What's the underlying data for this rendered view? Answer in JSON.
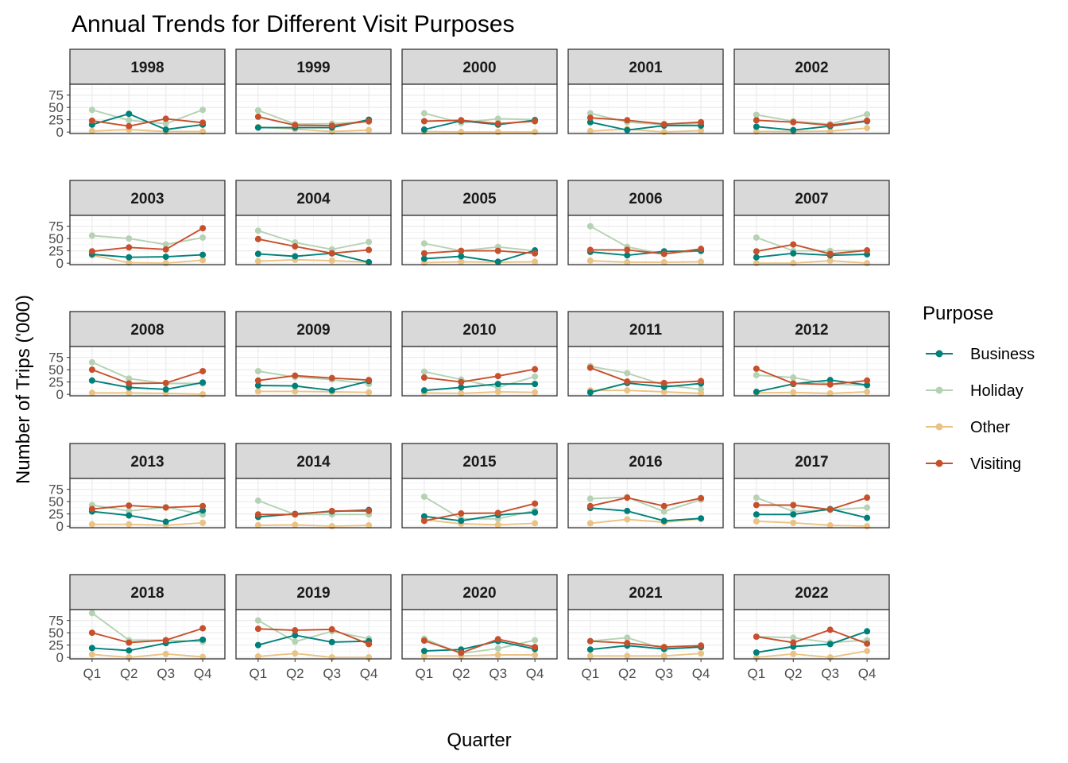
{
  "chart_data": {
    "type": "line",
    "title": "Annual Trends for Different Visit Purposes",
    "xlabel": "Quarter",
    "ylabel": "Number of Trips ('000)",
    "categories": [
      "Q1",
      "Q2",
      "Q3",
      "Q4"
    ],
    "ylim": [
      -3,
      97
    ],
    "yticks": [
      0,
      25,
      50,
      75
    ],
    "grid": true,
    "facet": "year",
    "facet_columns": 5,
    "legend": {
      "title": "Purpose",
      "placement": "right",
      "entries": [
        {
          "name": "Business",
          "color": "#00807a"
        },
        {
          "name": "Holiday",
          "color": "#b5d2b4"
        },
        {
          "name": "Other",
          "color": "#eac384"
        },
        {
          "name": "Visiting",
          "color": "#c6502c"
        }
      ]
    },
    "panels": [
      {
        "year": "1998",
        "series": {
          "Business": [
            15,
            37,
            5,
            15
          ],
          "Holiday": [
            45,
            24,
            17,
            45
          ],
          "Other": [
            2,
            5,
            1,
            1
          ],
          "Visiting": [
            23,
            12,
            27,
            19
          ]
        }
      },
      {
        "year": "1999",
        "series": {
          "Business": [
            9,
            9,
            9,
            25
          ],
          "Holiday": [
            44,
            16,
            17,
            21
          ],
          "Other": [
            10,
            6,
            1,
            4
          ],
          "Visiting": [
            31,
            14,
            13,
            22
          ]
        }
      },
      {
        "year": "2000",
        "series": {
          "Business": [
            5,
            23,
            15,
            24
          ],
          "Holiday": [
            38,
            19,
            27,
            25
          ],
          "Other": [
            1,
            0,
            0,
            0
          ],
          "Visiting": [
            22,
            24,
            17,
            22
          ]
        }
      },
      {
        "year": "2001",
        "series": {
          "Business": [
            20,
            4,
            13,
            13
          ],
          "Holiday": [
            38,
            20,
            15,
            17
          ],
          "Other": [
            2,
            6,
            0,
            3
          ],
          "Visiting": [
            29,
            24,
            16,
            20
          ]
        }
      },
      {
        "year": "2002",
        "series": {
          "Business": [
            11,
            4,
            12,
            22
          ],
          "Holiday": [
            35,
            22,
            16,
            36
          ],
          "Other": [
            1,
            1,
            2,
            8
          ],
          "Visiting": [
            24,
            20,
            14,
            23
          ]
        }
      },
      {
        "year": "2003",
        "series": {
          "Business": [
            18,
            12,
            13,
            17
          ],
          "Holiday": [
            56,
            50,
            38,
            52
          ],
          "Other": [
            16,
            1,
            0,
            6
          ],
          "Visiting": [
            24,
            32,
            28,
            71
          ]
        }
      },
      {
        "year": "2004",
        "series": {
          "Business": [
            19,
            14,
            20,
            2
          ],
          "Holiday": [
            66,
            42,
            28,
            43
          ],
          "Other": [
            4,
            7,
            5,
            2
          ],
          "Visiting": [
            49,
            34,
            20,
            27
          ]
        }
      },
      {
        "year": "2005",
        "series": {
          "Business": [
            9,
            14,
            3,
            26
          ],
          "Holiday": [
            40,
            25,
            33,
            25
          ],
          "Other": [
            1,
            3,
            2,
            3
          ],
          "Visiting": [
            20,
            25,
            25,
            20
          ]
        }
      },
      {
        "year": "2006",
        "series": {
          "Business": [
            23,
            16,
            24,
            25
          ],
          "Holiday": [
            75,
            33,
            19,
            25
          ],
          "Other": [
            5,
            2,
            2,
            3
          ],
          "Visiting": [
            27,
            27,
            19,
            29
          ]
        }
      },
      {
        "year": "2007",
        "series": {
          "Business": [
            12,
            20,
            16,
            18
          ],
          "Holiday": [
            52,
            25,
            25,
            26
          ],
          "Other": [
            0,
            0,
            5,
            0
          ],
          "Visiting": [
            24,
            38,
            19,
            26
          ]
        }
      },
      {
        "year": "2008",
        "series": {
          "Business": [
            28,
            14,
            10,
            24
          ],
          "Holiday": [
            65,
            32,
            22,
            22
          ],
          "Other": [
            3,
            3,
            2,
            0
          ],
          "Visiting": [
            50,
            22,
            23,
            47
          ]
        }
      },
      {
        "year": "2009",
        "series": {
          "Business": [
            18,
            17,
            8,
            27
          ],
          "Holiday": [
            47,
            35,
            30,
            21
          ],
          "Other": [
            6,
            6,
            5,
            4
          ],
          "Visiting": [
            28,
            38,
            33,
            29
          ]
        }
      },
      {
        "year": "2010",
        "series": {
          "Business": [
            8,
            14,
            21,
            21
          ],
          "Holiday": [
            46,
            30,
            14,
            36
          ],
          "Other": [
            3,
            2,
            5,
            4
          ],
          "Visiting": [
            34,
            25,
            37,
            51
          ]
        }
      },
      {
        "year": "2011",
        "series": {
          "Business": [
            4,
            23,
            15,
            22
          ],
          "Holiday": [
            57,
            43,
            19,
            10
          ],
          "Other": [
            8,
            8,
            5,
            2
          ],
          "Visiting": [
            54,
            26,
            23,
            27
          ]
        }
      },
      {
        "year": "2012",
        "series": {
          "Business": [
            5,
            21,
            29,
            19
          ],
          "Holiday": [
            39,
            34,
            21,
            18
          ],
          "Other": [
            3,
            4,
            2,
            5
          ],
          "Visiting": [
            52,
            22,
            20,
            28
          ]
        }
      },
      {
        "year": "2013",
        "series": {
          "Business": [
            30,
            22,
            9,
            32
          ],
          "Holiday": [
            43,
            31,
            39,
            24
          ],
          "Other": [
            4,
            4,
            2,
            7
          ],
          "Visiting": [
            35,
            42,
            38,
            41
          ]
        }
      },
      {
        "year": "2014",
        "series": {
          "Business": [
            19,
            25,
            30,
            33
          ],
          "Holiday": [
            52,
            24,
            24,
            24
          ],
          "Other": [
            2,
            3,
            0,
            2
          ],
          "Visiting": [
            24,
            24,
            31,
            31
          ]
        }
      },
      {
        "year": "2015",
        "series": {
          "Business": [
            20,
            11,
            23,
            28
          ],
          "Holiday": [
            60,
            15,
            15,
            32
          ],
          "Other": [
            13,
            5,
            3,
            6
          ],
          "Visiting": [
            11,
            26,
            27,
            46
          ]
        }
      },
      {
        "year": "2016",
        "series": {
          "Business": [
            37,
            31,
            11,
            16
          ],
          "Holiday": [
            56,
            59,
            30,
            54
          ],
          "Other": [
            6,
            14,
            8,
            15
          ],
          "Visiting": [
            41,
            58,
            41,
            57
          ]
        }
      },
      {
        "year": "2017",
        "series": {
          "Business": [
            24,
            24,
            35,
            17
          ],
          "Holiday": [
            58,
            30,
            33,
            38
          ],
          "Other": [
            10,
            7,
            2,
            0
          ],
          "Visiting": [
            43,
            43,
            34,
            58
          ]
        }
      },
      {
        "year": "2018",
        "series": {
          "Business": [
            19,
            14,
            29,
            36
          ],
          "Holiday": [
            90,
            35,
            35,
            32
          ],
          "Other": [
            6,
            0,
            7,
            1
          ],
          "Visiting": [
            50,
            30,
            35,
            59
          ]
        }
      },
      {
        "year": "2019",
        "series": {
          "Business": [
            25,
            45,
            31,
            33
          ],
          "Holiday": [
            75,
            32,
            53,
            38
          ],
          "Other": [
            2,
            8,
            0,
            0
          ],
          "Visiting": [
            58,
            55,
            57,
            27
          ]
        }
      },
      {
        "year": "2020",
        "series": {
          "Business": [
            13,
            16,
            33,
            17
          ],
          "Holiday": [
            38,
            8,
            18,
            35
          ],
          "Other": [
            3,
            3,
            5,
            5
          ],
          "Visiting": [
            34,
            9,
            37,
            21
          ]
        }
      },
      {
        "year": "2021",
        "series": {
          "Business": [
            16,
            24,
            17,
            21
          ],
          "Holiday": [
            33,
            40,
            17,
            21
          ],
          "Other": [
            3,
            3,
            3,
            8
          ],
          "Visiting": [
            33,
            29,
            21,
            24
          ]
        }
      },
      {
        "year": "2022",
        "series": {
          "Business": [
            10,
            22,
            27,
            53
          ],
          "Holiday": [
            42,
            40,
            30,
            35
          ],
          "Other": [
            0,
            7,
            0,
            13
          ],
          "Visiting": [
            42,
            30,
            56,
            28
          ]
        }
      }
    ]
  }
}
